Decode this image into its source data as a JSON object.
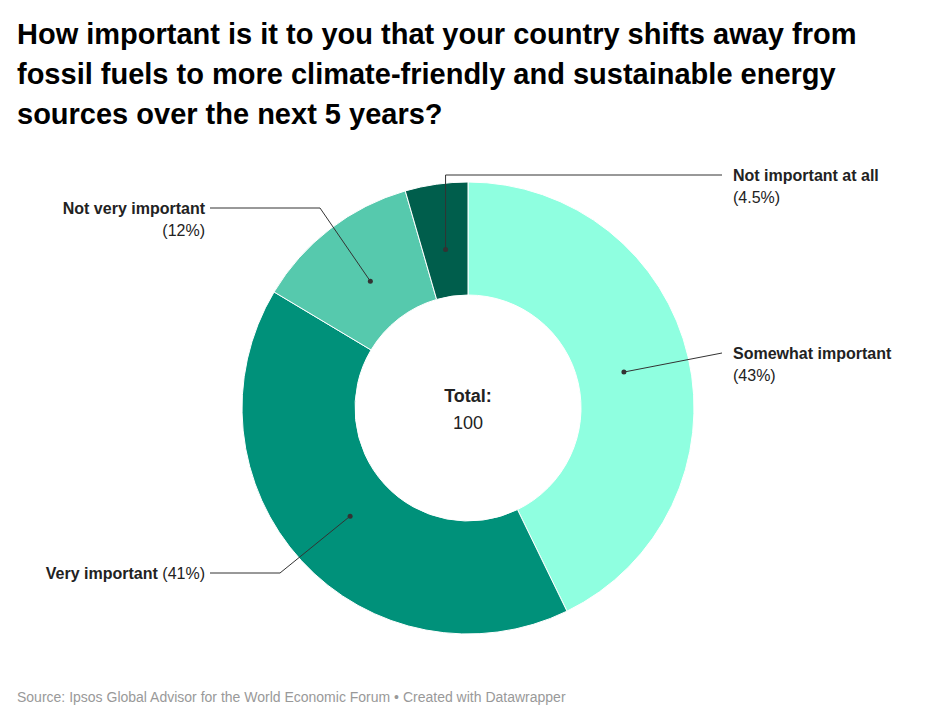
{
  "chart_data": {
    "type": "pie",
    "title": "How important is it to you that your country shifts away from fossil fuels to more climate-friendly and sustainable energy sources over the next 5 years?",
    "categories": [
      "Somewhat important",
      "Very important",
      "Not very important",
      "Not important at all"
    ],
    "values": [
      43,
      41,
      12,
      4.5
    ],
    "value_labels": [
      "(43%)",
      "(41%)",
      "(12%)",
      "(4.5%)"
    ],
    "colors": [
      "#8fffe0",
      "#00917a",
      "#56c9ad",
      "#005e4c"
    ],
    "data_labels": true,
    "center_label": "Total:",
    "total": 100,
    "source": "Source: Ipsos Global Advisor for the World Economic Forum • Created with Datawrapper"
  }
}
